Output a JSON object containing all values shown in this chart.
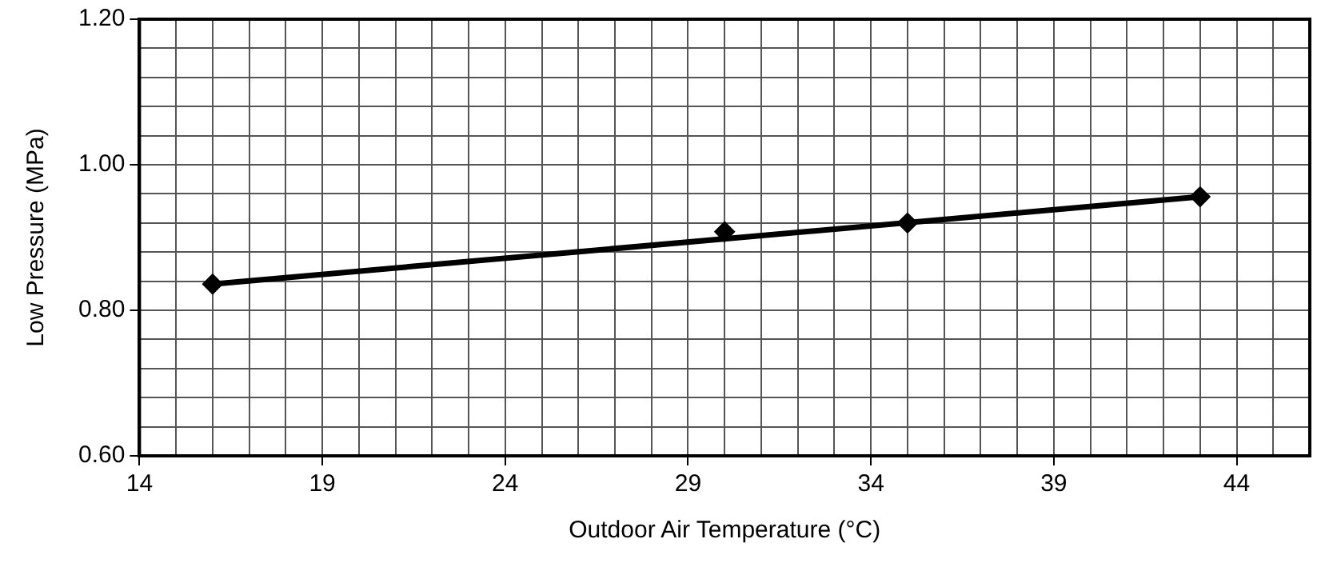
{
  "chart_data": {
    "type": "scatter",
    "xlabel": "Outdoor Air Temperature (°C)",
    "ylabel": "Low Pressure (MPa)",
    "series": [
      {
        "type": "line",
        "color": "#000000",
        "x": [
          16,
          43
        ],
        "values": [
          0.836,
          0.956
        ],
        "marker": "none",
        "line_style": "solid"
      },
      {
        "type": "scatter",
        "color": "#000000",
        "x": [
          16,
          30,
          35,
          43
        ],
        "values": [
          0.836,
          0.908,
          0.92,
          0.956
        ],
        "marker": "diamond"
      }
    ],
    "xlim": [
      14,
      46
    ],
    "xticks": [
      14,
      {
        "value": 15,
        "label": null
      },
      {
        "value": 16,
        "label": null
      },
      {
        "value": 17,
        "label": null
      },
      {
        "value": 18,
        "label": null
      },
      19,
      {
        "value": 20,
        "label": null
      },
      {
        "value": 21,
        "label": null
      },
      {
        "value": 22,
        "label": null
      },
      {
        "value": 23,
        "label": null
      },
      24,
      {
        "value": 25,
        "label": null
      },
      {
        "value": 26,
        "label": null
      },
      {
        "value": 27,
        "label": null
      },
      {
        "value": 28,
        "label": null
      },
      29,
      {
        "value": 30,
        "label": null
      },
      {
        "value": 31,
        "label": null
      },
      {
        "value": 32,
        "label": null
      },
      {
        "value": 33,
        "label": null
      },
      34,
      {
        "value": 35,
        "label": null
      },
      {
        "value": 36,
        "label": null
      },
      {
        "value": 37,
        "label": null
      },
      {
        "value": 38,
        "label": null
      },
      39,
      {
        "value": 40,
        "label": null
      },
      {
        "value": 41,
        "label": null
      },
      {
        "value": 42,
        "label": null
      },
      {
        "value": 43,
        "label": null
      },
      44,
      {
        "value": 45,
        "label": null
      },
      {
        "value": 46,
        "label": null
      }
    ],
    "ylim": [
      0.6,
      1.2
    ],
    "yticks": [
      {
        "value": 0.6,
        "label": "0.60"
      },
      {
        "value": 0.64,
        "label": null
      },
      {
        "value": 0.68,
        "label": null
      },
      {
        "value": 0.72,
        "label": null
      },
      {
        "value": 0.76,
        "label": null
      },
      {
        "value": 0.8,
        "label": "0.80"
      },
      {
        "value": 0.84,
        "label": null
      },
      {
        "value": 0.88,
        "label": null
      },
      {
        "value": 0.92,
        "label": null
      },
      {
        "value": 0.96,
        "label": null
      },
      {
        "value": 1.0,
        "label": "1.00"
      },
      {
        "value": 1.04,
        "label": null
      },
      {
        "value": 1.08,
        "label": null
      },
      {
        "value": 1.12,
        "label": null
      },
      {
        "value": 1.16,
        "label": null
      },
      {
        "value": 1.2,
        "label": "1.20"
      }
    ],
    "grid": true,
    "legend": false
  }
}
